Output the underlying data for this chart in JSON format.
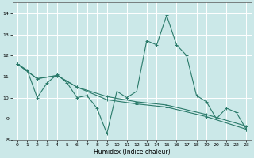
{
  "xlabel": "Humidex (Indice chaleur)",
  "bg_color": "#cbe8e8",
  "grid_color": "#ffffff",
  "line_color": "#2a7a6a",
  "ylim": [
    8.0,
    14.5
  ],
  "xlim": [
    -0.5,
    23.5
  ],
  "yticks": [
    8,
    9,
    10,
    11,
    12,
    13,
    14
  ],
  "xticks": [
    0,
    1,
    2,
    3,
    4,
    5,
    6,
    7,
    8,
    9,
    10,
    11,
    12,
    13,
    14,
    15,
    16,
    17,
    18,
    19,
    20,
    21,
    22,
    23
  ],
  "curve1": {
    "x": [
      0,
      1,
      2,
      3,
      4,
      5,
      6,
      7,
      8,
      9,
      10,
      11,
      12,
      13,
      14,
      15,
      16,
      17,
      18,
      19,
      20,
      21,
      22,
      23
    ],
    "y": [
      11.6,
      11.3,
      10.0,
      10.7,
      11.1,
      10.7,
      10.0,
      10.1,
      9.5,
      8.3,
      10.3,
      10.0,
      10.3,
      12.7,
      12.5,
      13.9,
      12.5,
      12.0,
      10.1,
      9.8,
      9.0,
      9.5,
      9.3,
      8.5
    ]
  },
  "line1": {
    "x": [
      0,
      2,
      4,
      6,
      9,
      12,
      15,
      19,
      23
    ],
    "y": [
      11.6,
      10.9,
      11.05,
      10.5,
      9.9,
      9.7,
      9.55,
      9.1,
      8.5
    ]
  },
  "line2": {
    "x": [
      0,
      2,
      4,
      6,
      9,
      12,
      15,
      19,
      23
    ],
    "y": [
      11.6,
      10.9,
      11.05,
      10.5,
      10.05,
      9.8,
      9.65,
      9.2,
      8.65
    ]
  }
}
